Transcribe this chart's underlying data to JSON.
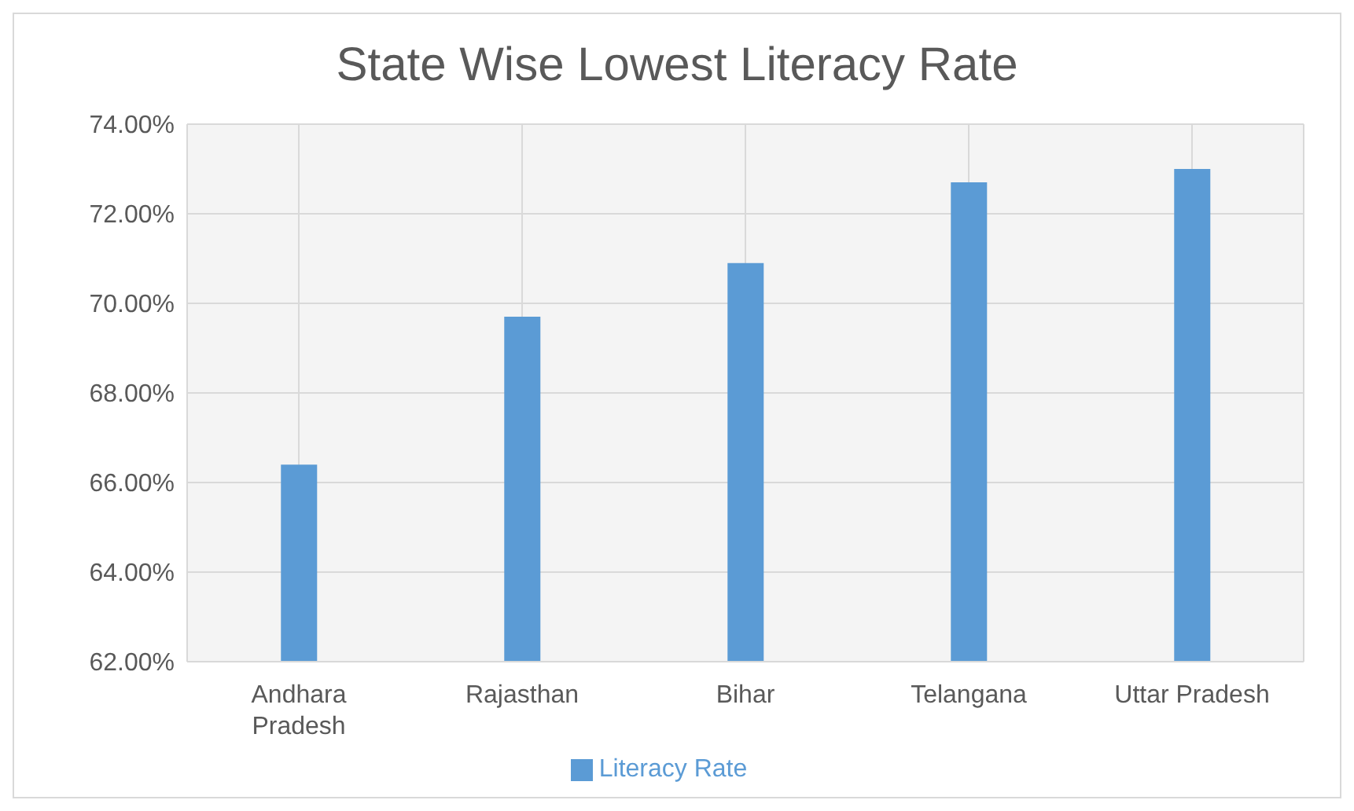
{
  "chart_data": {
    "type": "bar",
    "title": "State Wise Lowest Literacy Rate",
    "categories": [
      "Andhara Pradesh",
      "Rajasthan",
      "Bihar",
      "Telangana",
      "Uttar Pradesh"
    ],
    "series": [
      {
        "name": "Literacy Rate",
        "color": "#5b9bd5",
        "values": [
          66.4,
          69.7,
          70.9,
          72.7,
          73.0
        ]
      }
    ],
    "ylim": [
      62,
      74
    ],
    "yticks": [
      {
        "value": 62,
        "label": "62.00%"
      },
      {
        "value": 64,
        "label": "64.00%"
      },
      {
        "value": 66,
        "label": "66.00%"
      },
      {
        "value": 68,
        "label": "68.00%"
      },
      {
        "value": 70,
        "label": "70.00%"
      },
      {
        "value": 72,
        "label": "72.00%"
      },
      {
        "value": 74,
        "label": "74.00%"
      }
    ],
    "grid": true,
    "legend": "bottom"
  }
}
